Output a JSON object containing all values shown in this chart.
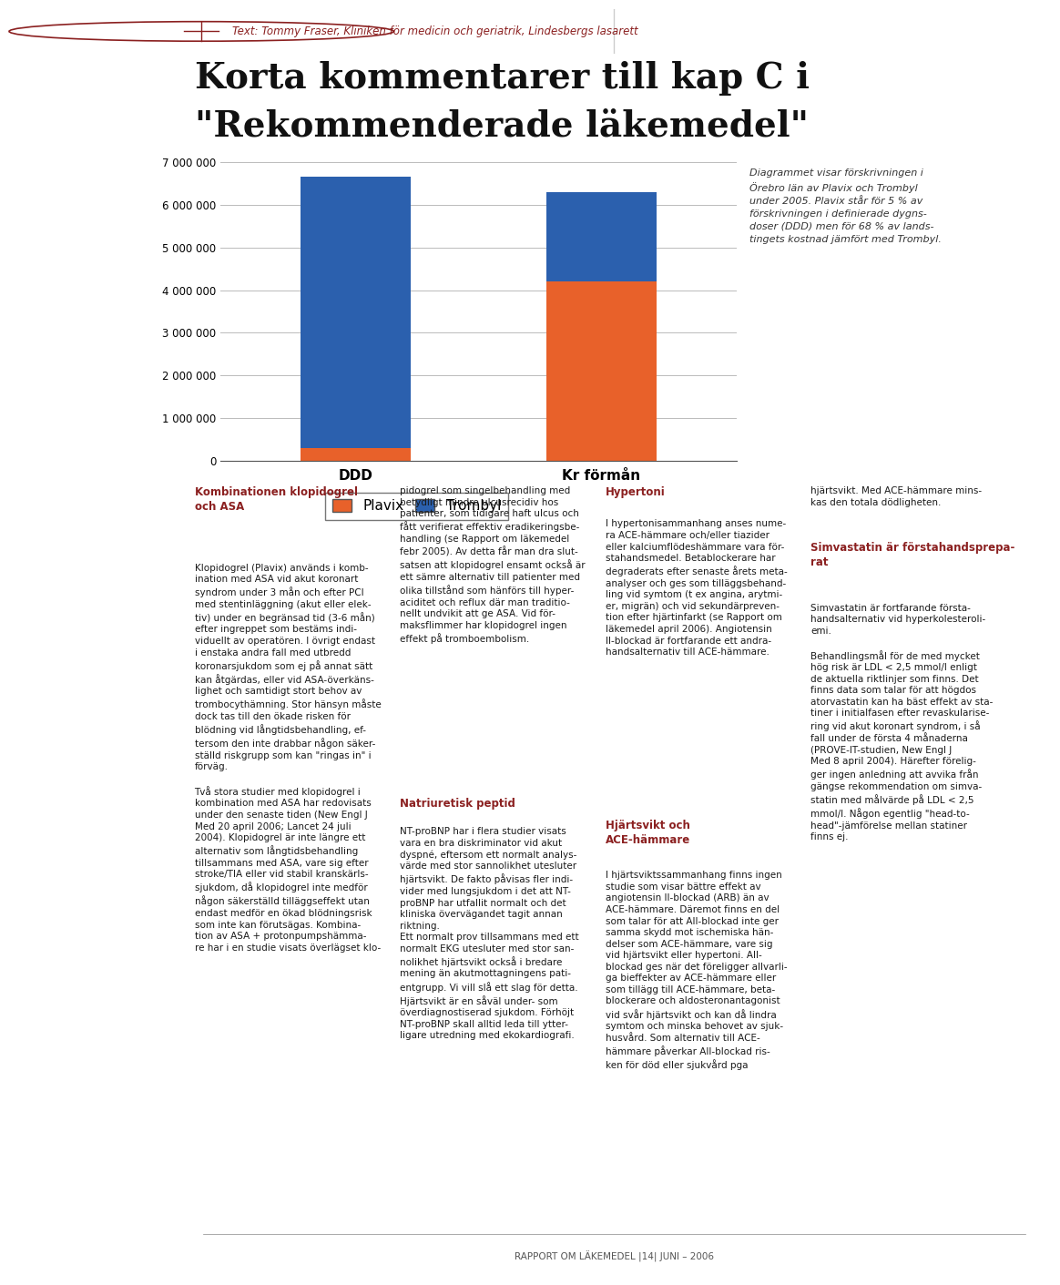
{
  "title_line1": "Korta kommentarer till kap C i",
  "title_line2": "\"Rekommenderade läkemedel\"",
  "header_text": "Text: Tommy Fraser, Kliniken för medicin och geriatrik, Lindesbergs lasarett",
  "categories": [
    "DDD",
    "Kr förmån"
  ],
  "plavix_values": [
    300000,
    4200000
  ],
  "trombyl_values": [
    6350000,
    2100000
  ],
  "plavix_color": "#E8612A",
  "trombyl_color": "#2B60AE",
  "yticks": [
    0,
    1000000,
    2000000,
    3000000,
    4000000,
    5000000,
    6000000,
    7000000
  ],
  "ytick_labels": [
    "0",
    "1 000 000",
    "2 000 000",
    "3 000 000",
    "4 000 000",
    "5 000 000",
    "6 000 000",
    "7 000 000"
  ],
  "ylim": [
    0,
    7000000
  ],
  "legend_plavix": "Plavix",
  "legend_trombyl": "Trombyl",
  "annotation_text": "Diagrammet visar förskrivningen i\nÖrebro län av Plavix och Trombyl\nunder 2005. Plavix står för 5 % av\nförskrivningen i definierade dygns-\ndoser (DDD) men för 68 % av lands-\ntingets kostnad jämfört med Trombyl.",
  "footer_text": "RAPPORT OM LÄKEMEDEL |14| JUNI – 2006",
  "background_color": "#FFFFFF",
  "bar_width": 0.45
}
